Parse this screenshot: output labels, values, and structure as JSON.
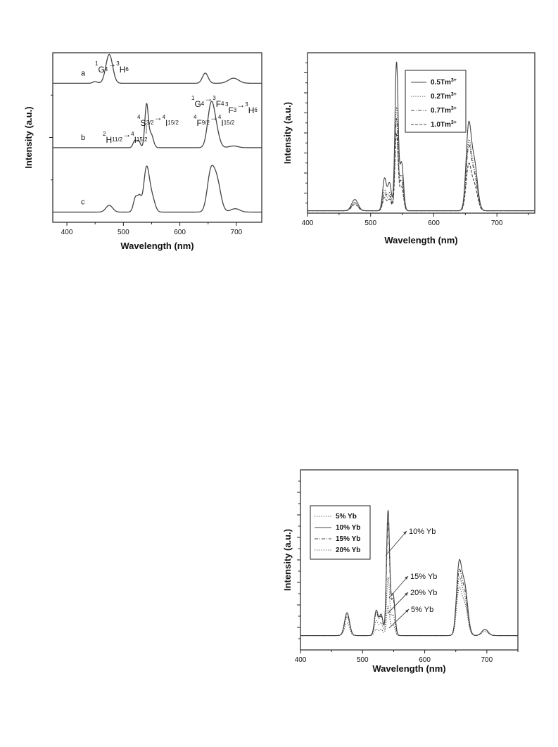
{
  "chart_data": [
    {
      "type": "line",
      "id": "chart1",
      "xlabel": "Wavelength (nm)",
      "ylabel": "Intensity (a.u.)",
      "xlim": [
        375,
        745
      ],
      "x_ticks": [
        400,
        500,
        600,
        700
      ],
      "y_ticks": "unlabeled",
      "grid": false,
      "legend": "none",
      "series": [
        {
          "name": "a",
          "offset": 0.82,
          "peaks": [
            [
              450,
              0.01,
              4
            ],
            [
              475,
              0.17,
              6
            ],
            [
              645,
              0.06,
              5
            ],
            [
              695,
              0.03,
              9
            ]
          ]
        },
        {
          "name": "b",
          "offset": 0.44,
          "peaks": [
            [
              520,
              0.04,
              3
            ],
            [
              527,
              0.04,
              3
            ],
            [
              541,
              0.25,
              3
            ],
            [
              549,
              0.08,
              4
            ],
            [
              655,
              0.24,
              6
            ],
            [
              664,
              0.09,
              6
            ],
            [
              695,
              0.01,
              8
            ]
          ]
        },
        {
          "name": "c",
          "offset": 0.06,
          "peaks": [
            [
              475,
              0.04,
              6
            ],
            [
              522,
              0.09,
              4
            ],
            [
              529,
              0.07,
              3
            ],
            [
              541,
              0.26,
              5
            ],
            [
              551,
              0.08,
              5
            ],
            [
              654,
              0.2,
              6
            ],
            [
              665,
              0.19,
              7
            ],
            [
              698,
              0.02,
              8
            ]
          ]
        }
      ],
      "annotations": [
        {
          "lead": "1",
          "main": "G",
          "sub": "4",
          "arrow": "→",
          "lead2": "3",
          "main2": "H",
          "sub2": "6",
          "x": 475
        },
        {
          "lead": "1",
          "main": "G",
          "sub": "4",
          "arrow": "→",
          "lead2": "3",
          "main2": "F",
          "sub2": "4",
          "x": 645
        },
        {
          "lead": "3",
          "main": "F",
          "sub": "3",
          "arrow": "→",
          "lead2": "3",
          "main2": "H",
          "sub2": "6",
          "x": 705
        },
        {
          "lead": "4",
          "main": "S",
          "sub": "3/2",
          "arrow": "→",
          "lead2": "4",
          "main2": "I",
          "sub2": "15/2",
          "x": 560
        },
        {
          "lead": "4",
          "main": "F",
          "sub": "9/2",
          "arrow": "→",
          "lead2": "4",
          "main2": "I",
          "sub2": "15/2",
          "x": 665
        },
        {
          "lead": "2",
          "main": "H",
          "sub": "11/2",
          "arrow": "→",
          "lead2": "4",
          "main2": "I",
          "sub2": "15/2",
          "x": 508
        }
      ]
    },
    {
      "type": "line",
      "id": "chart2",
      "xlabel": "Wavelength (nm)",
      "ylabel": "Intensity (a.u.)",
      "xlim": [
        400,
        760
      ],
      "ylim": [
        0,
        1
      ],
      "x_ticks": [
        400,
        500,
        600,
        700
      ],
      "y_ticks": "unlabeled",
      "grid": false,
      "legend": "top-right",
      "series": [
        {
          "name": "0.5Tm",
          "sup": "3+",
          "style": "solid",
          "peaks": [
            [
              475,
              0.07,
              5
            ],
            [
              522,
              0.2,
              3
            ],
            [
              530,
              0.17,
              3
            ],
            [
              541,
              0.92,
              2.5
            ],
            [
              549,
              0.3,
              3
            ],
            [
              655,
              0.49,
              4
            ],
            [
              664,
              0.3,
              5
            ]
          ]
        },
        {
          "name": "0.2Tm",
          "sup": "3+",
          "style": "dotted",
          "peaks": [
            [
              475,
              0.05,
              5
            ],
            [
              522,
              0.13,
              3
            ],
            [
              530,
              0.11,
              3
            ],
            [
              541,
              0.64,
              2.5
            ],
            [
              549,
              0.22,
              3
            ],
            [
              655,
              0.39,
              4
            ],
            [
              664,
              0.24,
              5
            ]
          ]
        },
        {
          "name": "0.7Tm",
          "sup": "3+",
          "style": "dashdot",
          "peaks": [
            [
              475,
              0.05,
              5
            ],
            [
              522,
              0.11,
              3
            ],
            [
              530,
              0.09,
              3
            ],
            [
              541,
              0.57,
              2.5
            ],
            [
              549,
              0.19,
              3
            ],
            [
              655,
              0.36,
              4
            ],
            [
              664,
              0.22,
              5
            ]
          ]
        },
        {
          "name": "1.0Tm",
          "sup": "3+",
          "style": "dashed",
          "peaks": [
            [
              475,
              0.04,
              5
            ],
            [
              522,
              0.08,
              3
            ],
            [
              530,
              0.07,
              3
            ],
            [
              541,
              0.48,
              2.5
            ],
            [
              549,
              0.15,
              3
            ],
            [
              655,
              0.26,
              4
            ],
            [
              664,
              0.16,
              5
            ]
          ]
        }
      ]
    },
    {
      "type": "line",
      "id": "chart3",
      "xlabel": "Wavelength (nm)",
      "ylabel": "Intensity (a.u.)",
      "xlim": [
        400,
        750
      ],
      "ylim": [
        0,
        1
      ],
      "x_ticks": [
        400,
        500,
        600,
        700
      ],
      "y_ticks": "unlabeled",
      "grid": false,
      "legend": "top-left",
      "series": [
        {
          "name": "5% Yb",
          "style": "dotted",
          "peaks": [
            [
              475,
              0.06,
              4
            ],
            [
              522,
              0.03,
              3
            ],
            [
              530,
              0.03,
              3
            ],
            [
              541,
              0.14,
              2.5
            ],
            [
              549,
              0.05,
              3
            ],
            [
              655,
              0.2,
              4
            ],
            [
              664,
              0.15,
              5
            ],
            [
              697,
              0.02,
              5
            ]
          ]
        },
        {
          "name": "10% Yb",
          "style": "solid",
          "peaks": [
            [
              475,
              0.11,
              4
            ],
            [
              522,
              0.12,
              3
            ],
            [
              530,
              0.1,
              3
            ],
            [
              541,
              0.6,
              2.5
            ],
            [
              549,
              0.2,
              3
            ],
            [
              655,
              0.31,
              4
            ],
            [
              664,
              0.24,
              5
            ],
            [
              697,
              0.03,
              5
            ]
          ]
        },
        {
          "name": "15% Yb",
          "style": "dashdot",
          "peaks": [
            [
              475,
              0.1,
              4
            ],
            [
              522,
              0.11,
              3
            ],
            [
              530,
              0.09,
              3
            ],
            [
              541,
              0.54,
              2.5
            ],
            [
              549,
              0.18,
              3
            ],
            [
              655,
              0.27,
              4
            ],
            [
              664,
              0.21,
              5
            ],
            [
              697,
              0.03,
              5
            ]
          ]
        },
        {
          "name": "20% Yb",
          "style": "dotted",
          "peaks": [
            [
              475,
              0.09,
              4
            ],
            [
              522,
              0.07,
              3
            ],
            [
              530,
              0.06,
              3
            ],
            [
              541,
              0.28,
              2.5
            ],
            [
              549,
              0.1,
              3
            ],
            [
              655,
              0.24,
              4
            ],
            [
              664,
              0.18,
              5
            ],
            [
              697,
              0.03,
              5
            ]
          ]
        }
      ],
      "annotations": [
        {
          "text": "10% Yb"
        },
        {
          "text": "15% Yb"
        },
        {
          "text": "20% Yb"
        },
        {
          "text": "5% Yb"
        }
      ]
    }
  ],
  "colors": {
    "line": "#444444",
    "axis": "#222222"
  }
}
